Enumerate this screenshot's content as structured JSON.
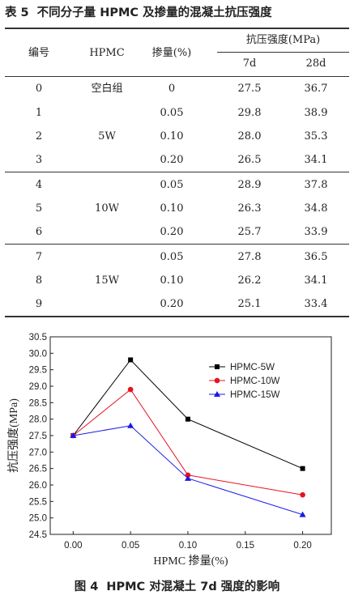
{
  "table": {
    "caption_number": "表 5",
    "caption_text": "不同分子量 HPMC 及掺量的混凝土抗压强度",
    "headers": {
      "id": "编号",
      "hpmc": "HPMC",
      "dosage": "掺量(%)",
      "strength": "抗压强度(MPa)",
      "d7": "7d",
      "d28": "28d"
    },
    "rows": [
      {
        "id": "0",
        "hpmc": "空白组",
        "dosage": "0",
        "d7": "27.5",
        "d28": "36.7"
      },
      {
        "id": "1",
        "hpmc": "",
        "dosage": "0.05",
        "d7": "29.8",
        "d28": "38.9"
      },
      {
        "id": "2",
        "hpmc": "5W",
        "dosage": "0.10",
        "d7": "28.0",
        "d28": "35.3"
      },
      {
        "id": "3",
        "hpmc": "",
        "dosage": "0.20",
        "d7": "26.5",
        "d28": "34.1"
      },
      {
        "id": "4",
        "hpmc": "",
        "dosage": "0.05",
        "d7": "28.9",
        "d28": "37.8"
      },
      {
        "id": "5",
        "hpmc": "10W",
        "dosage": "0.10",
        "d7": "26.3",
        "d28": "34.8"
      },
      {
        "id": "6",
        "hpmc": "",
        "dosage": "0.20",
        "d7": "25.7",
        "d28": "33.9"
      },
      {
        "id": "7",
        "hpmc": "",
        "dosage": "0.05",
        "d7": "27.8",
        "d28": "36.5"
      },
      {
        "id": "8",
        "hpmc": "15W",
        "dosage": "0.10",
        "d7": "26.2",
        "d28": "34.1"
      },
      {
        "id": "9",
        "hpmc": "",
        "dosage": "0.20",
        "d7": "25.1",
        "d28": "33.4"
      }
    ]
  },
  "figure": {
    "caption_number": "图 4",
    "caption_text": "HPMC 对混凝土 7d 强度的影响"
  },
  "chart_data": {
    "type": "line",
    "title": "",
    "xlabel": "HPMC 掺量(%)",
    "ylabel": "抗压强度(MPa)",
    "xlim": [
      -0.02,
      0.225
    ],
    "ylim": [
      24.5,
      30.5
    ],
    "xticks": [
      0.0,
      0.05,
      0.1,
      0.15,
      0.2
    ],
    "xtick_labels": [
      "0.00",
      "0.05",
      "0.10",
      "0.15",
      "0.20"
    ],
    "yticks": [
      24.5,
      25.0,
      25.5,
      26.0,
      26.5,
      27.0,
      27.5,
      28.0,
      28.5,
      29.0,
      29.5,
      30.0,
      30.5
    ],
    "ytick_labels": [
      "24.5",
      "25.0",
      "25.5",
      "26.0",
      "26.5",
      "27.0",
      "27.5",
      "28.0",
      "28.5",
      "29.0",
      "29.5",
      "30.0",
      "30.5"
    ],
    "x": [
      0.0,
      0.05,
      0.1,
      0.2
    ],
    "grid": false,
    "legend_position": "top-right",
    "series": [
      {
        "name": "HPMC-5W",
        "values": [
          27.5,
          29.8,
          28.0,
          26.5
        ],
        "color": "#000000",
        "marker": "square"
      },
      {
        "name": "HPMC-10W",
        "values": [
          27.5,
          28.9,
          26.3,
          25.7
        ],
        "color": "#e8121e",
        "marker": "circle"
      },
      {
        "name": "HPMC-15W",
        "values": [
          27.5,
          27.8,
          26.2,
          25.1
        ],
        "color": "#1a1ae6",
        "marker": "triangle"
      }
    ]
  }
}
